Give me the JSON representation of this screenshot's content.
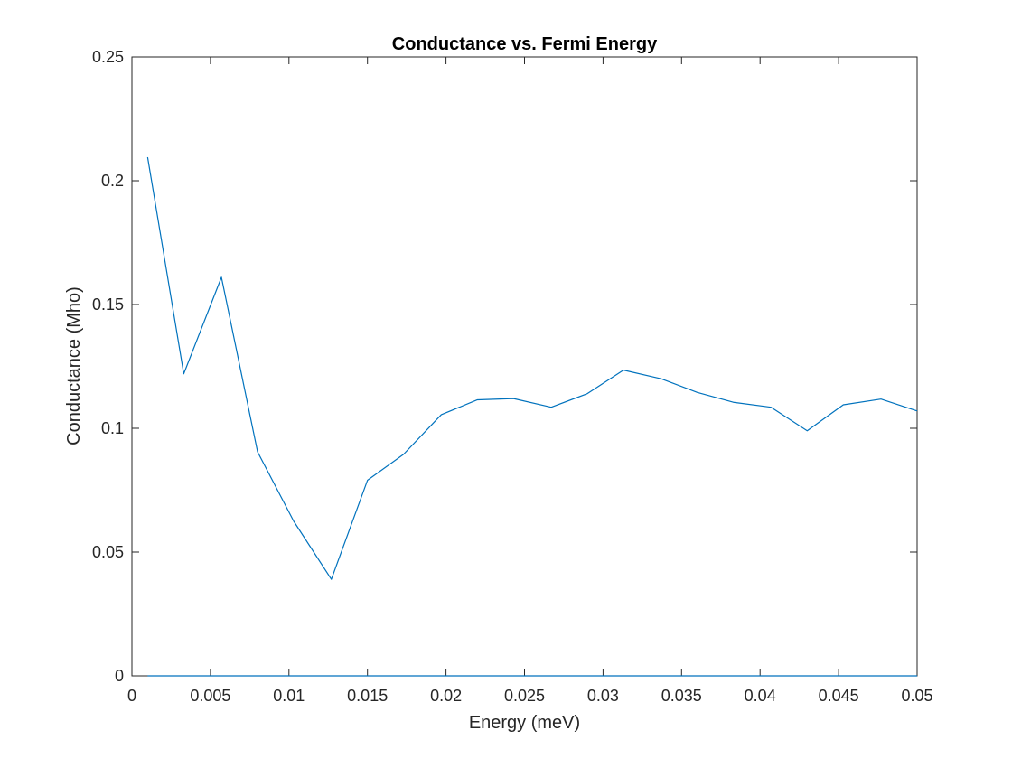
{
  "chart_data": {
    "type": "line",
    "title": "Conductance vs. Fermi Energy",
    "xlabel": "Energy (meV)",
    "ylabel": "Conductance (Mho)",
    "xlim": [
      0,
      0.05
    ],
    "ylim": [
      0,
      0.25
    ],
    "xticks": [
      0,
      0.005,
      0.01,
      0.015,
      0.02,
      0.025,
      0.03,
      0.035,
      0.04,
      0.045,
      0.05
    ],
    "xtick_labels": [
      "0",
      "0.005",
      "0.01",
      "0.015",
      "0.02",
      "0.025",
      "0.03",
      "0.035",
      "0.04",
      "0.045",
      "0.05"
    ],
    "yticks": [
      0,
      0.05,
      0.1,
      0.15,
      0.2,
      0.25
    ],
    "ytick_labels": [
      "0",
      "0.05",
      "0.1",
      "0.15",
      "0.2",
      "0.25"
    ],
    "grid": false,
    "box": true,
    "series": [
      {
        "color": "#0072bd",
        "x": [
          0.001,
          0.0033,
          0.0057,
          0.008,
          0.0103,
          0.0127,
          0.015,
          0.0173,
          0.0197,
          0.022,
          0.0243,
          0.0267,
          0.029,
          0.0313,
          0.0337,
          0.036,
          0.0383,
          0.0407,
          0.043,
          0.0453,
          0.0477,
          0.05
        ],
        "y": [
          0.2095,
          0.122,
          0.161,
          0.0905,
          0.0625,
          0.039,
          0.079,
          0.0895,
          0.1055,
          0.1115,
          0.112,
          0.1085,
          0.114,
          0.1235,
          0.12,
          0.1145,
          0.1105,
          0.1085,
          0.099,
          0.1095,
          0.1118,
          0.107
        ]
      },
      {
        "color": "#0072bd",
        "x": [
          0.001,
          0.05
        ],
        "y": [
          0,
          0
        ]
      }
    ]
  }
}
